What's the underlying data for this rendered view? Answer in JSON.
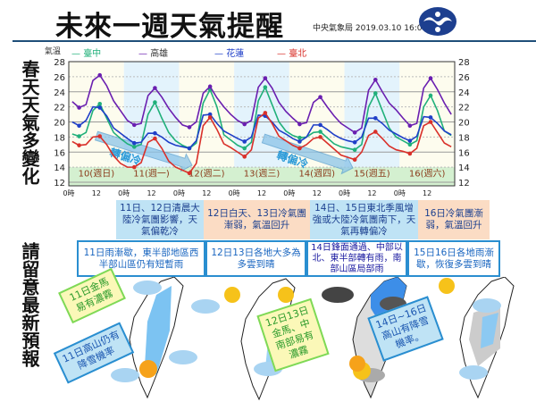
{
  "header": {
    "title": "未來一週天氣提醒",
    "issuer": "中央氣象局 2019.03.10 16:00發布",
    "logo": "cwb-logo"
  },
  "side": {
    "line1": "春天天氣多變化",
    "line2": "請留意最新預報"
  },
  "colors": {
    "taichung": "#20b07a",
    "kaohsiung": "#6a1fb0",
    "hualien": "#1f3fc8",
    "taipei": "#d9302a",
    "rule": "#1f4e79"
  },
  "chart_data": {
    "type": "line",
    "ylabel": "氣溫",
    "ylim": [
      12,
      28
    ],
    "yticks": [
      12,
      14,
      16,
      18,
      20,
      22,
      24,
      26,
      28
    ],
    "grid": true,
    "legend": "top",
    "xticks": [
      "0時",
      "12",
      "0時",
      "12",
      "0時",
      "12",
      "0時",
      "12",
      "0時",
      "12",
      "0時",
      "12",
      "0時",
      "12"
    ],
    "day_labels": [
      "10(週日)",
      "11(週一)",
      "12(週二)",
      "13(週三)",
      "14(週四)",
      "15(週五)",
      "16(週六)"
    ],
    "x": [
      "10日00時",
      "10日03時",
      "10日06時",
      "10日09時",
      "10日12時",
      "10日15時",
      "10日18時",
      "10日21時",
      "11日00時",
      "11日03時",
      "11日06時",
      "11日09時",
      "11日12時",
      "11日15時",
      "11日18時",
      "11日21時",
      "12日00時",
      "12日03時",
      "12日06時",
      "12日09時",
      "12日12時",
      "12日15時",
      "12日18時",
      "12日21時",
      "13日00時",
      "13日03時",
      "13日06時",
      "13日09時",
      "13日12時",
      "13日15時",
      "13日18時",
      "13日21時",
      "14日00時",
      "14日03時",
      "14日06時",
      "14日09時",
      "14日12時",
      "14日15時",
      "14日18時",
      "14日21時",
      "15日00時",
      "15日03時",
      "15日06時",
      "15日09時",
      "15日12時",
      "15日15時",
      "15日18時",
      "15日21時",
      "16日00時",
      "16日03時",
      "16日06時",
      "16日09時",
      "16日12時",
      "16日15時",
      "16日18時",
      "16日21時"
    ],
    "series": [
      {
        "name": "臺中",
        "color": "#20b07a",
        "values": [
          18.4,
          18.1,
          18.6,
          21.5,
          22.4,
          20.5,
          18.6,
          17.8,
          17.1,
          16.7,
          17.0,
          21.0,
          22.6,
          20.5,
          18.6,
          17.5,
          16.9,
          16.5,
          17.2,
          22.5,
          24.3,
          22.0,
          18.3,
          17.6,
          16.9,
          16.5,
          17.3,
          22.8,
          24.6,
          22.3,
          20.0,
          18.8,
          18.2,
          17.9,
          18.0,
          18.6,
          18.7,
          17.9,
          17.1,
          16.7,
          16.5,
          16.3,
          17.0,
          22.0,
          23.8,
          21.5,
          19.2,
          18.0,
          17.5,
          17.0,
          17.5,
          22.0,
          23.5,
          21.5,
          18.8,
          18.2
        ]
      },
      {
        "name": "高雄",
        "color": "#6a1fb0",
        "values": [
          22.7,
          21.9,
          22.3,
          25.5,
          26.2,
          24.8,
          22.8,
          21.5,
          20.2,
          19.6,
          19.8,
          23.5,
          24.5,
          23.3,
          21.8,
          20.6,
          19.6,
          19.3,
          20.0,
          23.8,
          24.7,
          23.2,
          22.0,
          21.0,
          20.2,
          19.7,
          20.2,
          24.6,
          25.8,
          24.5,
          22.6,
          21.4,
          20.5,
          19.7,
          19.9,
          22.6,
          23.3,
          22.0,
          20.8,
          19.8,
          19.2,
          18.6,
          19.2,
          24.2,
          25.6,
          24.0,
          22.5,
          21.6,
          20.5,
          19.5,
          19.8,
          24.5,
          25.8,
          24.3,
          22.5,
          21.0
        ]
      },
      {
        "name": "花蓮",
        "color": "#1f3fc8",
        "values": [
          20.0,
          19.5,
          20.2,
          22.0,
          21.9,
          20.8,
          19.2,
          18.5,
          17.8,
          17.2,
          17.3,
          18.5,
          18.5,
          18.0,
          17.3,
          16.9,
          16.7,
          16.5,
          17.5,
          20.9,
          21.0,
          19.8,
          18.8,
          18.3,
          17.8,
          17.4,
          18.0,
          20.9,
          20.8,
          20.0,
          18.9,
          18.4,
          17.8,
          17.4,
          18.0,
          19.6,
          19.6,
          19.0,
          18.3,
          17.8,
          17.5,
          17.3,
          18.0,
          20.5,
          20.5,
          19.8,
          18.9,
          18.4,
          17.9,
          17.5,
          18.1,
          20.7,
          20.6,
          19.8,
          18.8,
          18.3
        ]
      },
      {
        "name": "臺北",
        "color": "#d9302a",
        "values": [
          17.4,
          16.9,
          17.0,
          18.0,
          18.1,
          17.0,
          15.5,
          14.5,
          14.0,
          14.0,
          14.6,
          17.3,
          17.8,
          16.5,
          14.8,
          14.0,
          13.6,
          13.2,
          14.5,
          19.5,
          20.6,
          19.0,
          17.1,
          16.6,
          16.0,
          15.4,
          16.3,
          20.5,
          21.2,
          19.8,
          18.1,
          17.5,
          16.9,
          16.5,
          17.0,
          17.8,
          18.0,
          17.2,
          16.4,
          15.6,
          15.3,
          15.0,
          16.0,
          18.2,
          18.7,
          17.8,
          16.8,
          16.3,
          16.1,
          15.8,
          16.5,
          19.5,
          20.0,
          18.6,
          17.2,
          16.7
        ]
      }
    ],
    "annotations": [
      "轉偏冷",
      "轉偏冷"
    ]
  },
  "trend_boxes": [
    "11日、12日清晨大陸冷氣團影響，天氣偏乾冷",
    "12日白天、13日冷氣團漸弱，氣溫回升",
    "14日、15日東北季風增強或大陸冷氣團南下，天氣再轉偏冷",
    "16日冷氣團漸弱，氣溫回升"
  ],
  "rain_boxes": [
    "11日雨漸歇，東半部地區西半部山區仍有短暫雨",
    "12日13日各地大多為多雲到晴",
    "14日鋒面通過、中部以北、東半部轉有雨，南部山區局部雨",
    "15日16日各地雨漸歇，恢復多雲到晴"
  ],
  "map_notes": [
    "11日金馬易有濃霧",
    "11日高山仍有降雪機率",
    "12日13日金馬、中南部易有濃霧",
    "14日~16日高山有降雪機率。"
  ]
}
